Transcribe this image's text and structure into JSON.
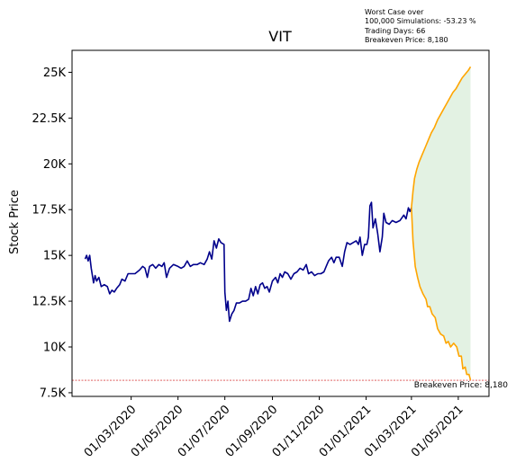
{
  "chart_data": {
    "type": "line",
    "title": "VIT",
    "xlabel": "",
    "ylabel": "Stock Price",
    "ylim": [
      7300,
      26200
    ],
    "xlim": [
      "2019-12-15",
      "2021-06-10"
    ],
    "grid": false,
    "y_ticks": [
      {
        "value": 7500,
        "label": "7.5K"
      },
      {
        "value": 10000,
        "label": "10K"
      },
      {
        "value": 12500,
        "label": "12.5K"
      },
      {
        "value": 15000,
        "label": "15K"
      },
      {
        "value": 17500,
        "label": "17.5K"
      },
      {
        "value": 20000,
        "label": "20K"
      },
      {
        "value": 22500,
        "label": "22.5K"
      },
      {
        "value": 25000,
        "label": "25K"
      }
    ],
    "x_ticks": [
      {
        "value": "2020-03-01",
        "label": "01/03/2020"
      },
      {
        "value": "2020-05-01",
        "label": "01/05/2020"
      },
      {
        "value": "2020-07-01",
        "label": "01/07/2020"
      },
      {
        "value": "2020-09-01",
        "label": "01/09/2020"
      },
      {
        "value": "2020-11-01",
        "label": "01/11/2020"
      },
      {
        "value": "2021-01-01",
        "label": "01/01/2021"
      },
      {
        "value": "2021-03-01",
        "label": "01/03/2021"
      },
      {
        "value": "2021-05-01",
        "label": "01/05/2021"
      }
    ],
    "historical": {
      "color": "#00008b",
      "points": [
        [
          "2020-01-01",
          14800
        ],
        [
          "2020-01-03",
          15000
        ],
        [
          "2020-01-05",
          14700
        ],
        [
          "2020-01-07",
          15000
        ],
        [
          "2020-01-09",
          14300
        ],
        [
          "2020-01-12",
          13500
        ],
        [
          "2020-01-14",
          13900
        ],
        [
          "2020-01-16",
          13600
        ],
        [
          "2020-01-19",
          13800
        ],
        [
          "2020-01-22",
          13300
        ],
        [
          "2020-01-26",
          13400
        ],
        [
          "2020-01-30",
          13300
        ],
        [
          "2020-02-02",
          12900
        ],
        [
          "2020-02-05",
          13100
        ],
        [
          "2020-02-08",
          13000
        ],
        [
          "2020-02-11",
          13200
        ],
        [
          "2020-02-15",
          13400
        ],
        [
          "2020-02-18",
          13700
        ],
        [
          "2020-02-22",
          13600
        ],
        [
          "2020-02-26",
          14000
        ],
        [
          "2020-03-01",
          14000
        ],
        [
          "2020-03-06",
          14000
        ],
        [
          "2020-03-12",
          14200
        ],
        [
          "2020-03-16",
          14400
        ],
        [
          "2020-03-19",
          14300
        ],
        [
          "2020-03-22",
          13800
        ],
        [
          "2020-03-25",
          14400
        ],
        [
          "2020-03-29",
          14500
        ],
        [
          "2020-04-02",
          14300
        ],
        [
          "2020-04-06",
          14500
        ],
        [
          "2020-04-10",
          14400
        ],
        [
          "2020-04-13",
          14600
        ],
        [
          "2020-04-16",
          13800
        ],
        [
          "2020-04-20",
          14300
        ],
        [
          "2020-04-25",
          14500
        ],
        [
          "2020-05-01",
          14400
        ],
        [
          "2020-05-05",
          14300
        ],
        [
          "2020-05-09",
          14400
        ],
        [
          "2020-05-13",
          14700
        ],
        [
          "2020-05-17",
          14400
        ],
        [
          "2020-05-21",
          14500
        ],
        [
          "2020-05-26",
          14500
        ],
        [
          "2020-05-30",
          14600
        ],
        [
          "2020-06-04",
          14500
        ],
        [
          "2020-06-08",
          14800
        ],
        [
          "2020-06-11",
          15200
        ],
        [
          "2020-06-14",
          14800
        ],
        [
          "2020-06-17",
          15800
        ],
        [
          "2020-06-20",
          15400
        ],
        [
          "2020-06-23",
          15900
        ],
        [
          "2020-06-26",
          15700
        ],
        [
          "2020-06-30",
          15600
        ],
        [
          "2020-07-01",
          13000
        ],
        [
          "2020-07-03",
          12000
        ],
        [
          "2020-07-05",
          12500
        ],
        [
          "2020-07-07",
          11400
        ],
        [
          "2020-07-10",
          11800
        ],
        [
          "2020-07-13",
          12000
        ],
        [
          "2020-07-16",
          12400
        ],
        [
          "2020-07-20",
          12400
        ],
        [
          "2020-07-24",
          12500
        ],
        [
          "2020-07-28",
          12500
        ],
        [
          "2020-08-01",
          12600
        ],
        [
          "2020-08-04",
          13200
        ],
        [
          "2020-08-07",
          12800
        ],
        [
          "2020-08-10",
          13300
        ],
        [
          "2020-08-13",
          12900
        ],
        [
          "2020-08-16",
          13400
        ],
        [
          "2020-08-19",
          13500
        ],
        [
          "2020-08-22",
          13200
        ],
        [
          "2020-08-25",
          13300
        ],
        [
          "2020-08-28",
          13000
        ],
        [
          "2020-09-01",
          13600
        ],
        [
          "2020-09-05",
          13800
        ],
        [
          "2020-09-08",
          13500
        ],
        [
          "2020-09-11",
          14000
        ],
        [
          "2020-09-14",
          13800
        ],
        [
          "2020-09-17",
          14100
        ],
        [
          "2020-09-21",
          14000
        ],
        [
          "2020-09-25",
          13700
        ],
        [
          "2020-09-29",
          14000
        ],
        [
          "2020-10-03",
          14100
        ],
        [
          "2020-10-07",
          14300
        ],
        [
          "2020-10-11",
          14200
        ],
        [
          "2020-10-15",
          14500
        ],
        [
          "2020-10-18",
          14000
        ],
        [
          "2020-10-22",
          14100
        ],
        [
          "2020-10-26",
          13900
        ],
        [
          "2020-10-30",
          14000
        ],
        [
          "2020-11-03",
          14000
        ],
        [
          "2020-11-07",
          14100
        ],
        [
          "2020-11-10",
          14400
        ],
        [
          "2020-11-13",
          14700
        ],
        [
          "2020-11-17",
          14900
        ],
        [
          "2020-11-20",
          14600
        ],
        [
          "2020-11-23",
          14900
        ],
        [
          "2020-11-27",
          14900
        ],
        [
          "2020-12-01",
          14400
        ],
        [
          "2020-12-04",
          15200
        ],
        [
          "2020-12-07",
          15700
        ],
        [
          "2020-12-11",
          15600
        ],
        [
          "2020-12-15",
          15700
        ],
        [
          "2020-12-19",
          15800
        ],
        [
          "2020-12-22",
          15600
        ],
        [
          "2020-12-24",
          16000
        ],
        [
          "2020-12-27",
          15000
        ],
        [
          "2020-12-30",
          15600
        ],
        [
          "2021-01-02",
          15600
        ],
        [
          "2021-01-04",
          16000
        ],
        [
          "2021-01-06",
          17700
        ],
        [
          "2021-01-08",
          17900
        ],
        [
          "2021-01-10",
          16500
        ],
        [
          "2021-01-13",
          17000
        ],
        [
          "2021-01-16",
          16200
        ],
        [
          "2021-01-19",
          15200
        ],
        [
          "2021-01-22",
          16000
        ],
        [
          "2021-01-24",
          17300
        ],
        [
          "2021-01-27",
          16800
        ],
        [
          "2021-01-31",
          16700
        ],
        [
          "2021-02-04",
          16900
        ],
        [
          "2021-02-09",
          16800
        ],
        [
          "2021-02-14",
          16900
        ],
        [
          "2021-02-19",
          17200
        ],
        [
          "2021-02-22",
          17000
        ],
        [
          "2021-02-25",
          17600
        ],
        [
          "2021-02-27",
          17400
        ],
        [
          "2021-03-01",
          17600
        ]
      ]
    },
    "simulation_upper": {
      "color": "#ffa500",
      "points": [
        [
          "2021-03-01",
          17600
        ],
        [
          "2021-03-03",
          18500
        ],
        [
          "2021-03-05",
          19200
        ],
        [
          "2021-03-08",
          19700
        ],
        [
          "2021-03-11",
          20100
        ],
        [
          "2021-03-15",
          20500
        ],
        [
          "2021-03-19",
          20900
        ],
        [
          "2021-03-23",
          21300
        ],
        [
          "2021-03-27",
          21700
        ],
        [
          "2021-03-31",
          22000
        ],
        [
          "2021-04-04",
          22400
        ],
        [
          "2021-04-08",
          22700
        ],
        [
          "2021-04-12",
          23000
        ],
        [
          "2021-04-16",
          23300
        ],
        [
          "2021-04-20",
          23600
        ],
        [
          "2021-04-24",
          23900
        ],
        [
          "2021-04-28",
          24100
        ],
        [
          "2021-05-02",
          24400
        ],
        [
          "2021-05-06",
          24700
        ],
        [
          "2021-05-10",
          24900
        ],
        [
          "2021-05-14",
          25100
        ],
        [
          "2021-05-17",
          25300
        ]
      ]
    },
    "simulation_lower": {
      "color": "#ffa500",
      "points": [
        [
          "2021-03-01",
          17600
        ],
        [
          "2021-03-03",
          15800
        ],
        [
          "2021-03-06",
          14400
        ],
        [
          "2021-03-09",
          13800
        ],
        [
          "2021-03-12",
          13300
        ],
        [
          "2021-03-16",
          12900
        ],
        [
          "2021-03-20",
          12600
        ],
        [
          "2021-03-22",
          12200
        ],
        [
          "2021-03-25",
          12200
        ],
        [
          "2021-03-28",
          11800
        ],
        [
          "2021-04-01",
          11600
        ],
        [
          "2021-04-04",
          11000
        ],
        [
          "2021-04-08",
          10700
        ],
        [
          "2021-04-12",
          10600
        ],
        [
          "2021-04-15",
          10200
        ],
        [
          "2021-04-18",
          10300
        ],
        [
          "2021-04-21",
          10000
        ],
        [
          "2021-04-25",
          10200
        ],
        [
          "2021-04-29",
          10000
        ],
        [
          "2021-05-02",
          9500
        ],
        [
          "2021-05-05",
          9500
        ],
        [
          "2021-05-07",
          8800
        ],
        [
          "2021-05-10",
          8900
        ],
        [
          "2021-05-12",
          8500
        ],
        [
          "2021-05-15",
          8500
        ],
        [
          "2021-05-17",
          8200
        ]
      ]
    },
    "band_fill_color": "#e3f2e3",
    "breakeven": {
      "value": 8180,
      "label": "Breakeven Price: 8,180",
      "color": "#cc0000"
    },
    "annotation": {
      "lines": [
        "Worst Case over",
        "100,000 Simulations: -53.23 %",
        "Trading Days: 66",
        "Breakeven Price: 8,180"
      ]
    }
  }
}
